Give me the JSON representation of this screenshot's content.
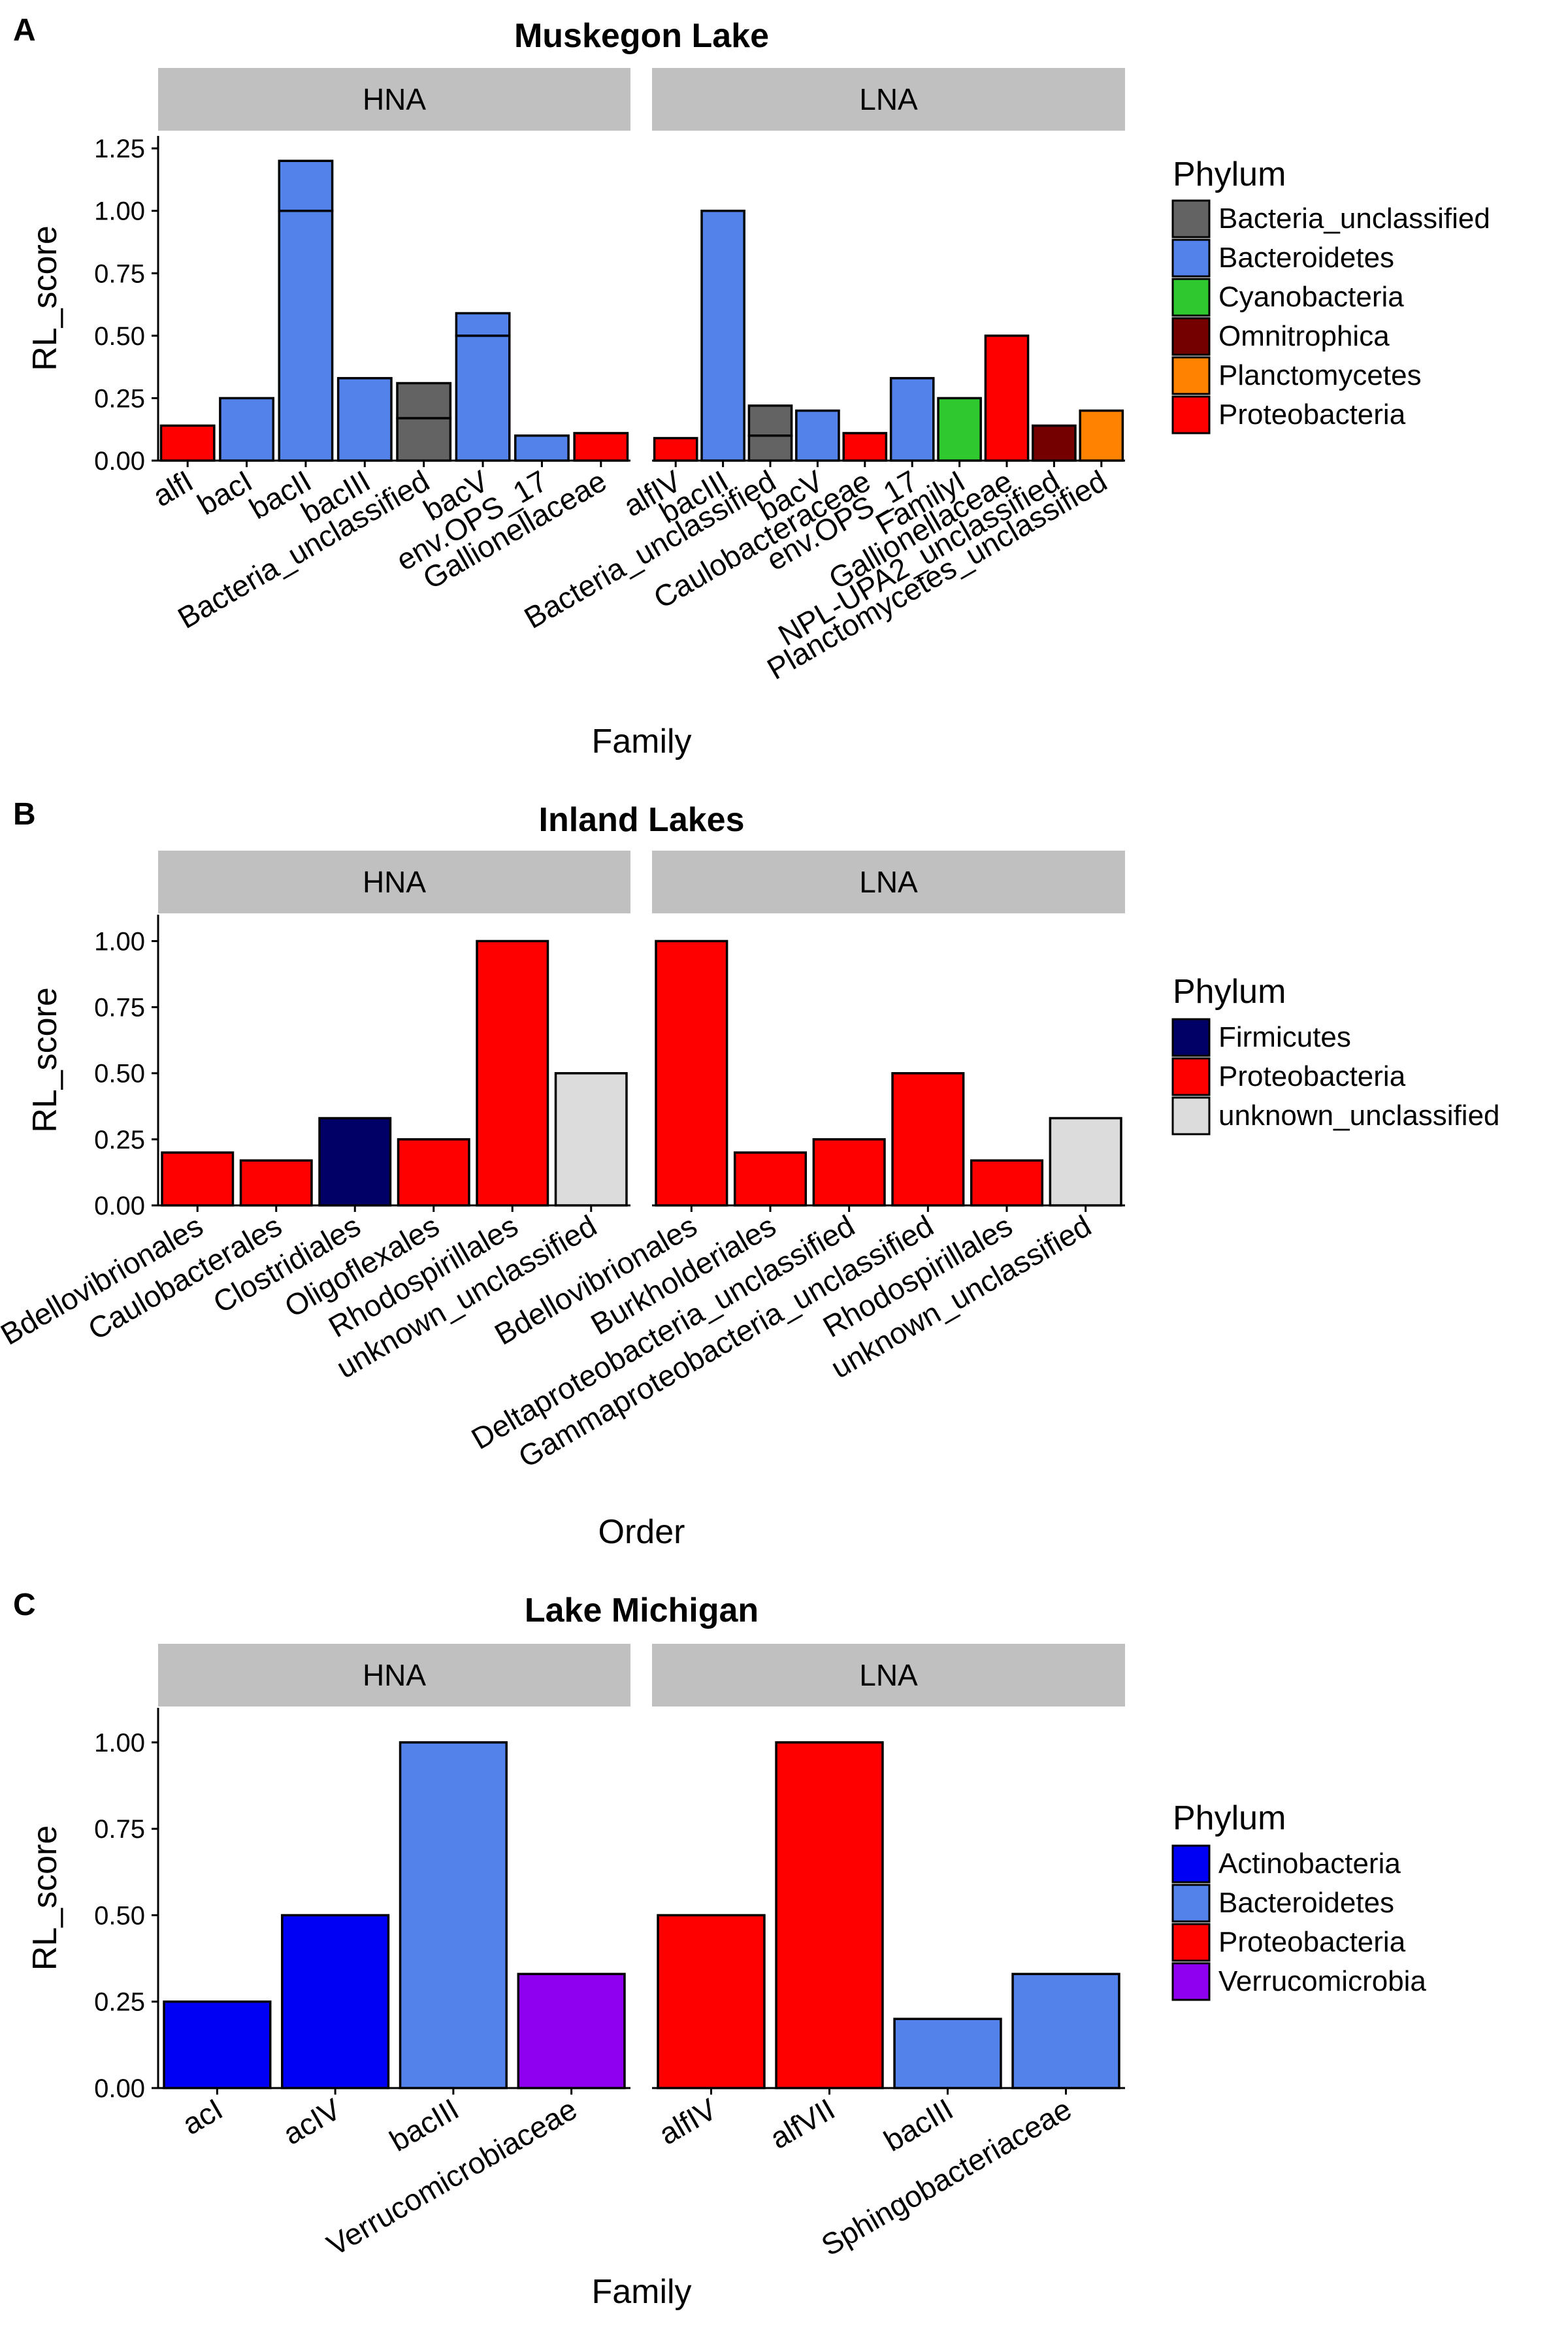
{
  "chart_data": [
    {
      "type": "bar",
      "panel_letter": "A",
      "title": "Muskegon Lake",
      "xlabel": "Family",
      "ylabel": "RL_score",
      "ylim": [
        0,
        1.3
      ],
      "yticks": [
        "0.00",
        "0.25",
        "0.50",
        "0.75",
        "1.00",
        "1.25"
      ],
      "ytick_values": [
        0,
        0.25,
        0.5,
        0.75,
        1.0,
        1.25
      ],
      "legend": {
        "title": "Phylum",
        "position": "right",
        "items": [
          {
            "label": "Bacteria_unclassified",
            "color": "#636363"
          },
          {
            "label": "Bacteroidetes",
            "color": "#5383ea"
          },
          {
            "label": "Cyanobacteria",
            "color": "#2fc82f"
          },
          {
            "label": "Omnitrophica",
            "color": "#750000"
          },
          {
            "label": "Planctomycetes",
            "color": "#ff8200"
          },
          {
            "label": "Proteobacteria",
            "color": "#ff0000"
          }
        ]
      },
      "facets": [
        {
          "label": "HNA",
          "bars": [
            {
              "category": "alfI",
              "phylum": "Proteobacteria",
              "segments": [
                0.14
              ]
            },
            {
              "category": "bacI",
              "phylum": "Bacteroidetes",
              "segments": [
                0.25
              ]
            },
            {
              "category": "bacII",
              "phylum": "Bacteroidetes",
              "segments": [
                1.0,
                0.2
              ]
            },
            {
              "category": "bacIII",
              "phylum": "Bacteroidetes",
              "segments": [
                0.33
              ]
            },
            {
              "category": "Bacteria_unclassified",
              "phylum": "Bacteria_unclassified",
              "segments": [
                0.17,
                0.14
              ]
            },
            {
              "category": "bacV",
              "phylum": "Bacteroidetes",
              "segments": [
                0.5,
                0.09
              ]
            },
            {
              "category": "env.OPS_17",
              "phylum": "Bacteroidetes",
              "segments": [
                0.1
              ]
            },
            {
              "category": "Gallionellaceae",
              "phylum": "Proteobacteria",
              "segments": [
                0.11
              ]
            }
          ]
        },
        {
          "label": "LNA",
          "bars": [
            {
              "category": "alfIV",
              "phylum": "Proteobacteria",
              "segments": [
                0.09
              ]
            },
            {
              "category": "bacIII",
              "phylum": "Bacteroidetes",
              "segments": [
                1.0
              ]
            },
            {
              "category": "Bacteria_unclassified",
              "phylum": "Bacteria_unclassified",
              "segments": [
                0.1,
                0.12
              ]
            },
            {
              "category": "bacV",
              "phylum": "Bacteroidetes",
              "segments": [
                0.2
              ]
            },
            {
              "category": "Caulobacteraceae",
              "phylum": "Proteobacteria",
              "segments": [
                0.11
              ]
            },
            {
              "category": "env.OPS_17",
              "phylum": "Bacteroidetes",
              "segments": [
                0.33
              ]
            },
            {
              "category": "FamilyI",
              "phylum": "Cyanobacteria",
              "segments": [
                0.25
              ]
            },
            {
              "category": "Gallionellaceae",
              "phylum": "Proteobacteria",
              "segments": [
                0.5
              ]
            },
            {
              "category": "NPL-UPA2_unclassified",
              "phylum": "Omnitrophica",
              "segments": [
                0.14
              ]
            },
            {
              "category": "Planctomycetes_unclassified",
              "phylum": "Planctomycetes",
              "segments": [
                0.2
              ]
            }
          ]
        }
      ]
    },
    {
      "type": "bar",
      "panel_letter": "B",
      "title": "Inland Lakes",
      "xlabel": "Order",
      "ylabel": "RL_score",
      "ylim": [
        0,
        1.1
      ],
      "yticks": [
        "0.00",
        "0.25",
        "0.50",
        "0.75",
        "1.00"
      ],
      "ytick_values": [
        0,
        0.25,
        0.5,
        0.75,
        1.0
      ],
      "legend": {
        "title": "Phylum",
        "position": "right",
        "items": [
          {
            "label": "Firmicutes",
            "color": "#000066"
          },
          {
            "label": "Proteobacteria",
            "color": "#ff0000"
          },
          {
            "label": "unknown_unclassified",
            "color": "#dcdcdc"
          }
        ]
      },
      "facets": [
        {
          "label": "HNA",
          "bars": [
            {
              "category": "Bdellovibrionales",
              "phylum": "Proteobacteria",
              "segments": [
                0.2
              ]
            },
            {
              "category": "Caulobacterales",
              "phylum": "Proteobacteria",
              "segments": [
                0.17
              ]
            },
            {
              "category": "Clostridiales",
              "phylum": "Firmicutes",
              "segments": [
                0.33
              ]
            },
            {
              "category": "Oligoflexales",
              "phylum": "Proteobacteria",
              "segments": [
                0.25
              ]
            },
            {
              "category": "Rhodospirillales",
              "phylum": "Proteobacteria",
              "segments": [
                1.0
              ]
            },
            {
              "category": "unknown_unclassified",
              "phylum": "unknown_unclassified",
              "segments": [
                0.5
              ]
            }
          ]
        },
        {
          "label": "LNA",
          "bars": [
            {
              "category": "Bdellovibrionales",
              "phylum": "Proteobacteria",
              "segments": [
                1.0
              ]
            },
            {
              "category": "Burkholderiales",
              "phylum": "Proteobacteria",
              "segments": [
                0.2
              ]
            },
            {
              "category": "Deltaproteobacteria_unclassified",
              "phylum": "Proteobacteria",
              "segments": [
                0.25
              ]
            },
            {
              "category": "Gammaproteobacteria_unclassified",
              "phylum": "Proteobacteria",
              "segments": [
                0.5
              ]
            },
            {
              "category": "Rhodospirillales",
              "phylum": "Proteobacteria",
              "segments": [
                0.17
              ]
            },
            {
              "category": "unknown_unclassified",
              "phylum": "unknown_unclassified",
              "segments": [
                0.33
              ]
            }
          ]
        }
      ]
    },
    {
      "type": "bar",
      "panel_letter": "C",
      "title": "Lake Michigan",
      "xlabel": "Family",
      "ylabel": "RL_score",
      "ylim": [
        0,
        1.1
      ],
      "yticks": [
        "0.00",
        "0.25",
        "0.50",
        "0.75",
        "1.00"
      ],
      "ytick_values": [
        0,
        0.25,
        0.5,
        0.75,
        1.0
      ],
      "legend": {
        "title": "Phylum",
        "position": "right",
        "items": [
          {
            "label": "Actinobacteria",
            "color": "#0000f5"
          },
          {
            "label": "Bacteroidetes",
            "color": "#5383ea"
          },
          {
            "label": "Proteobacteria",
            "color": "#ff0000"
          },
          {
            "label": "Verrucomicrobia",
            "color": "#8f00f0"
          }
        ]
      },
      "facets": [
        {
          "label": "HNA",
          "bars": [
            {
              "category": "acI",
              "phylum": "Actinobacteria",
              "segments": [
                0.25
              ]
            },
            {
              "category": "acIV",
              "phylum": "Actinobacteria",
              "segments": [
                0.5
              ]
            },
            {
              "category": "bacIII",
              "phylum": "Bacteroidetes",
              "segments": [
                1.0
              ]
            },
            {
              "category": "Verrucomicrobiaceae",
              "phylum": "Verrucomicrobia",
              "segments": [
                0.33
              ]
            }
          ]
        },
        {
          "label": "LNA",
          "bars": [
            {
              "category": "alfIV",
              "phylum": "Proteobacteria",
              "segments": [
                0.5
              ]
            },
            {
              "category": "alfVII",
              "phylum": "Proteobacteria",
              "segments": [
                1.0
              ]
            },
            {
              "category": "bacIII",
              "phylum": "Bacteroidetes",
              "segments": [
                0.2
              ]
            },
            {
              "category": "Sphingobacteriaceae",
              "phylum": "Bacteroidetes",
              "segments": [
                0.33
              ]
            }
          ]
        }
      ]
    }
  ]
}
